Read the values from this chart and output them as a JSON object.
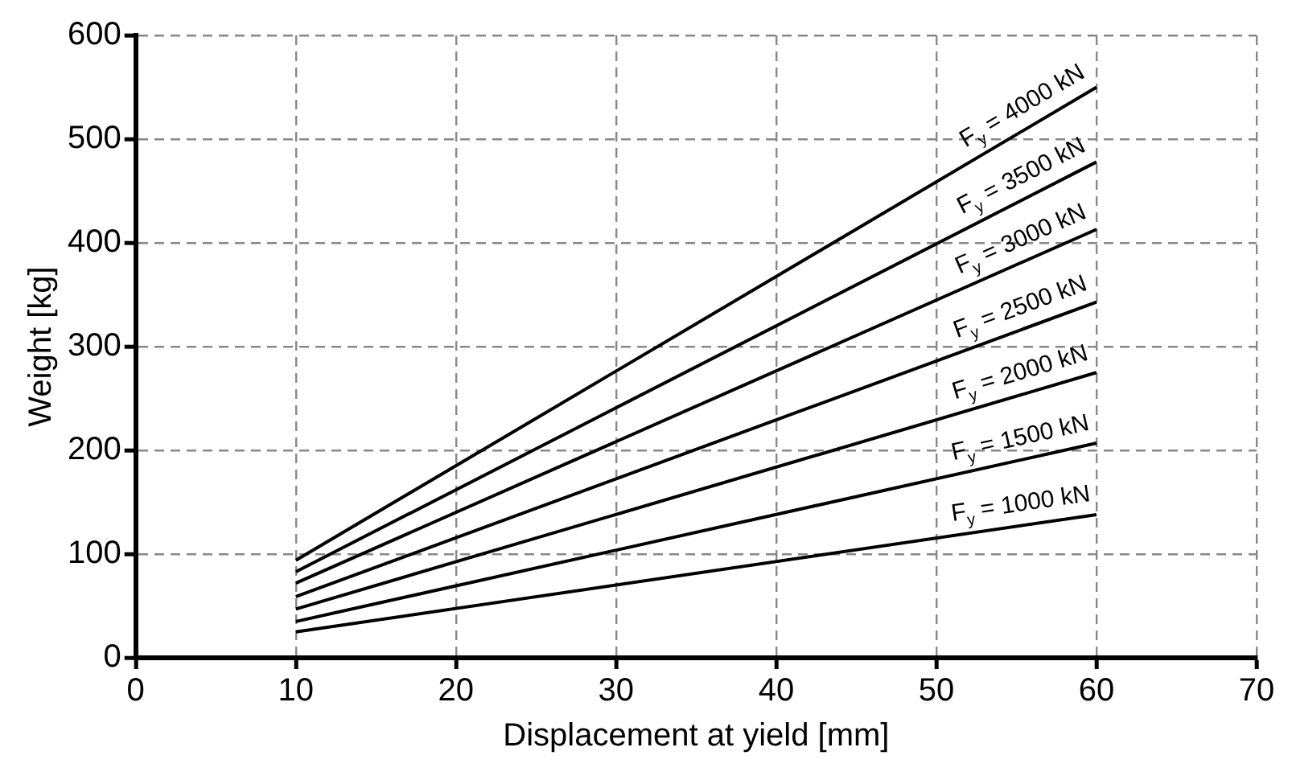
{
  "chart_data": {
    "type": "line",
    "xlabel": "Displacement at yield [mm]",
    "ylabel": "Weight [kg]",
    "x": [
      10,
      60
    ],
    "xlim": [
      0,
      70
    ],
    "xticks": [
      0,
      10,
      20,
      30,
      40,
      50,
      60,
      70
    ],
    "ylim": [
      0,
      600
    ],
    "yticks": [
      0,
      100,
      200,
      300,
      400,
      500,
      600
    ],
    "grid": true,
    "legend": false,
    "marker": "none",
    "line_style": "solid",
    "series": [
      {
        "name": "F$_{y}$ = 1000 kN",
        "color": "#000000",
        "values": [
          25,
          138
        ]
      },
      {
        "name": "F$_{y}$ = 1500 kN",
        "color": "#000000",
        "values": [
          35,
          207
        ]
      },
      {
        "name": "F$_{y}$ = 2000 kN",
        "color": "#000000",
        "values": [
          47,
          275
        ]
      },
      {
        "name": "F$_{y}$ = 2500 kN",
        "color": "#000000",
        "values": [
          59,
          343
        ]
      },
      {
        "name": "F$_{y}$ = 3000 kN",
        "color": "#000000",
        "values": [
          72,
          413
        ]
      },
      {
        "name": "F$_{y}$ = 3500 kN",
        "color": "#000000",
        "values": [
          83,
          478
        ]
      },
      {
        "name": "F$_{y}$ = 4000 kN",
        "color": "#000000",
        "values": [
          94,
          550
        ]
      }
    ]
  }
}
